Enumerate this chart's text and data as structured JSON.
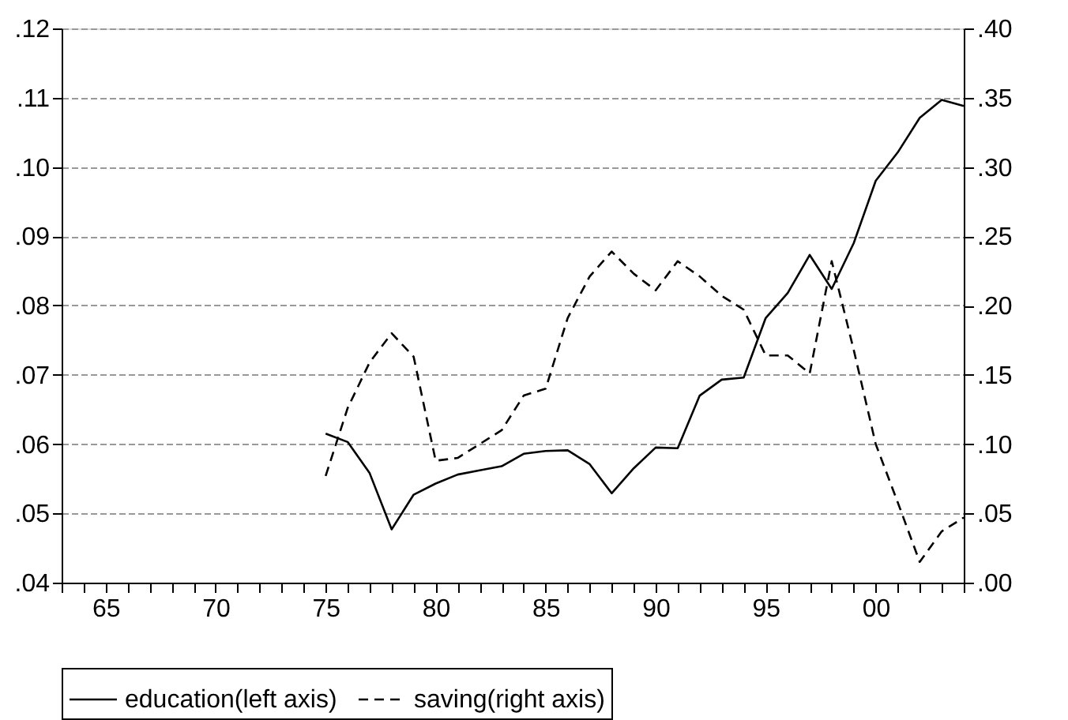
{
  "chart_data": {
    "type": "line",
    "x": [
      1975,
      1976,
      1977,
      1978,
      1979,
      1980,
      1981,
      1982,
      1983,
      1984,
      1985,
      1986,
      1987,
      1988,
      1989,
      1990,
      1991,
      1992,
      1993,
      1994,
      1995,
      1996,
      1997,
      1998,
      1999,
      2000,
      2001,
      2002,
      2003,
      2004
    ],
    "series": [
      {
        "name": "education(left axis)",
        "color": "#000000",
        "line_style": "solid",
        "values": [
          0.0615,
          0.0603,
          0.0558,
          0.0477,
          0.0527,
          0.0543,
          0.0556,
          0.0562,
          0.0568,
          0.0586,
          0.059,
          0.0591,
          0.0571,
          0.0529,
          0.0565,
          0.0595,
          0.0594,
          0.067,
          0.0693,
          0.0696,
          0.0782,
          0.0818,
          0.0873,
          0.0824,
          0.089,
          0.098,
          0.1021,
          0.1071,
          0.1097,
          0.1088
        ]
      },
      {
        "name": "saving(right axis)",
        "color": "#000000",
        "line_style": "dashed",
        "axis": "y2",
        "values": [
          0.077,
          0.126,
          0.159,
          0.18,
          0.163,
          0.088,
          0.09,
          0.1,
          0.11,
          0.135,
          0.14,
          0.191,
          0.221,
          0.239,
          0.223,
          0.211,
          0.232,
          0.221,
          0.207,
          0.197,
          0.164,
          0.164,
          0.151,
          0.232,
          0.168,
          0.1,
          0.058,
          0.015,
          0.037,
          0.047
        ]
      }
    ],
    "xlim": [
      1963,
      2004
    ],
    "xticks": [
      {
        "value": 1963,
        "label": null
      },
      {
        "value": 1964,
        "label": null
      },
      {
        "value": 1965,
        "label": "65"
      },
      {
        "value": 1966,
        "label": null
      },
      {
        "value": 1967,
        "label": null
      },
      {
        "value": 1968,
        "label": null
      },
      {
        "value": 1969,
        "label": null
      },
      {
        "value": 1970,
        "label": "70"
      },
      {
        "value": 1971,
        "label": null
      },
      {
        "value": 1972,
        "label": null
      },
      {
        "value": 1973,
        "label": null
      },
      {
        "value": 1974,
        "label": null
      },
      {
        "value": 1975,
        "label": "75"
      },
      {
        "value": 1976,
        "label": null
      },
      {
        "value": 1977,
        "label": null
      },
      {
        "value": 1978,
        "label": null
      },
      {
        "value": 1979,
        "label": null
      },
      {
        "value": 1980,
        "label": "80"
      },
      {
        "value": 1981,
        "label": null
      },
      {
        "value": 1982,
        "label": null
      },
      {
        "value": 1983,
        "label": null
      },
      {
        "value": 1984,
        "label": null
      },
      {
        "value": 1985,
        "label": "85"
      },
      {
        "value": 1986,
        "label": null
      },
      {
        "value": 1987,
        "label": null
      },
      {
        "value": 1988,
        "label": null
      },
      {
        "value": 1989,
        "label": null
      },
      {
        "value": 1990,
        "label": "90"
      },
      {
        "value": 1991,
        "label": null
      },
      {
        "value": 1992,
        "label": null
      },
      {
        "value": 1993,
        "label": null
      },
      {
        "value": 1994,
        "label": null
      },
      {
        "value": 1995,
        "label": "95"
      },
      {
        "value": 1996,
        "label": null
      },
      {
        "value": 1997,
        "label": null
      },
      {
        "value": 1998,
        "label": null
      },
      {
        "value": 1999,
        "label": null
      },
      {
        "value": 2000,
        "label": "00"
      },
      {
        "value": 2001,
        "label": null
      },
      {
        "value": 2002,
        "label": null
      },
      {
        "value": 2003,
        "label": null
      },
      {
        "value": 2004,
        "label": null
      }
    ],
    "ylim": [
      0.04,
      0.12
    ],
    "yticks": [
      {
        "value": 0.04,
        "label": ".04"
      },
      {
        "value": 0.05,
        "label": ".05"
      },
      {
        "value": 0.06,
        "label": ".06"
      },
      {
        "value": 0.07,
        "label": ".07"
      },
      {
        "value": 0.08,
        "label": ".08"
      },
      {
        "value": 0.09,
        "label": ".09"
      },
      {
        "value": 0.1,
        "label": ".10"
      },
      {
        "value": 0.11,
        "label": ".11"
      },
      {
        "value": 0.12,
        "label": ".12"
      }
    ],
    "y2lim": [
      0,
      0.4
    ],
    "y2ticks": [
      {
        "value": 0,
        "label": ".00"
      },
      {
        "value": 0.05,
        "label": ".05"
      },
      {
        "value": 0.1,
        "label": ".10"
      },
      {
        "value": 0.15,
        "label": ".15"
      },
      {
        "value": 0.2,
        "label": ".20"
      },
      {
        "value": 0.25,
        "label": ".25"
      },
      {
        "value": 0.3,
        "label": ".30"
      },
      {
        "value": 0.35,
        "label": ".35"
      },
      {
        "value": 0.4,
        "label": ".40"
      }
    ],
    "grid": "y",
    "legend": "bottom"
  }
}
